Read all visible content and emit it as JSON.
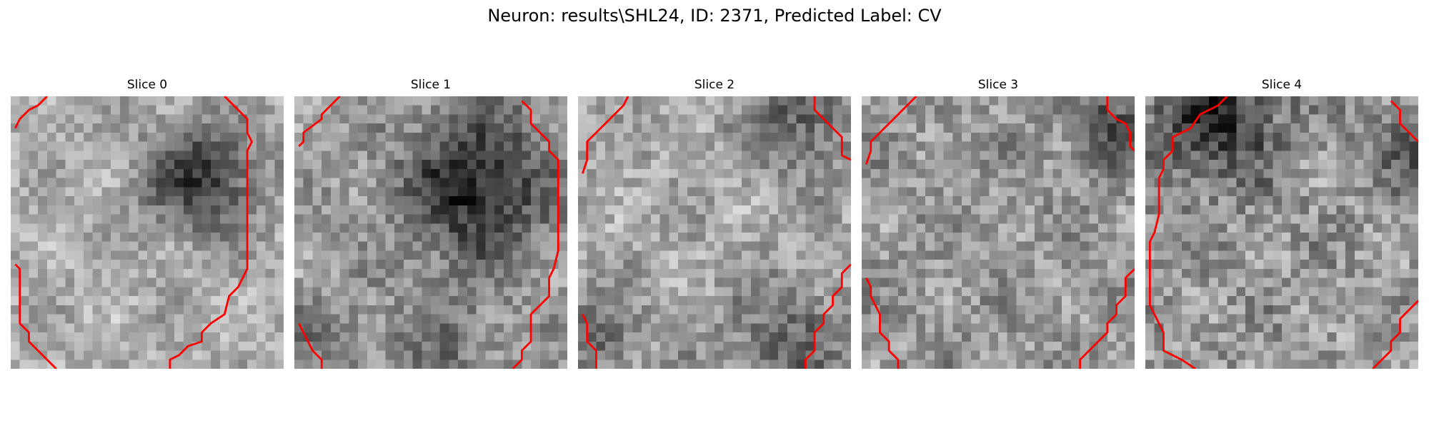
{
  "figure": {
    "title": "Neuron: results\\SHL24, ID: 2371, Predicted Label: CV"
  },
  "panels": [
    {
      "title": "Slice 0"
    },
    {
      "title": "Slice 1"
    },
    {
      "title": "Slice 2"
    },
    {
      "title": "Slice 3"
    },
    {
      "title": "Slice 4"
    }
  ],
  "colors": {
    "contour": "#ff0000",
    "colormap": "grayscale"
  }
}
